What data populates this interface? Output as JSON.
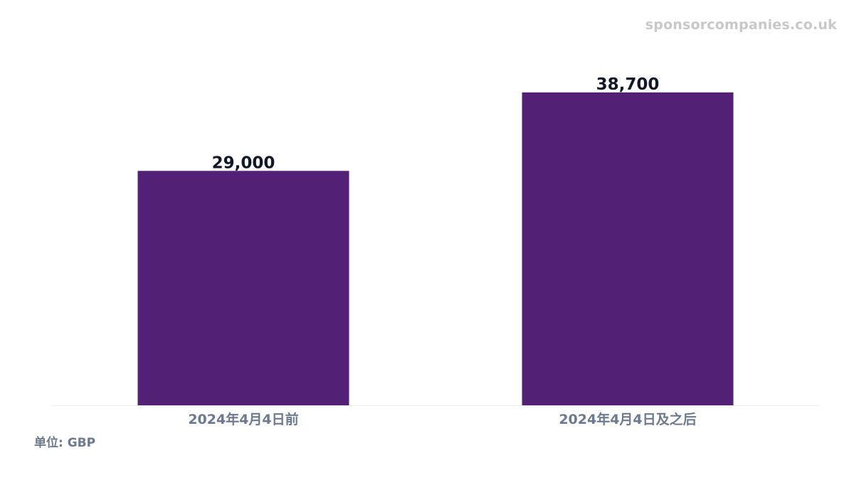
{
  "watermark": "sponsorcompanies.co.uk",
  "unit_label": "单位: GBP",
  "colors": {
    "bar": "#522175",
    "value_label": "#111827",
    "category_label": "#6b7a8f",
    "baseline": "#eeeeee"
  },
  "chart_data": {
    "type": "bar",
    "categories": [
      "2024年4月4日前",
      "2024年4月4日及之后"
    ],
    "values": [
      29000,
      38700
    ],
    "value_labels": [
      "29,000",
      "38,700"
    ],
    "title": "",
    "xlabel": "",
    "ylabel": "",
    "ylim": [
      0,
      38700
    ],
    "grid": false,
    "legend": "none"
  }
}
